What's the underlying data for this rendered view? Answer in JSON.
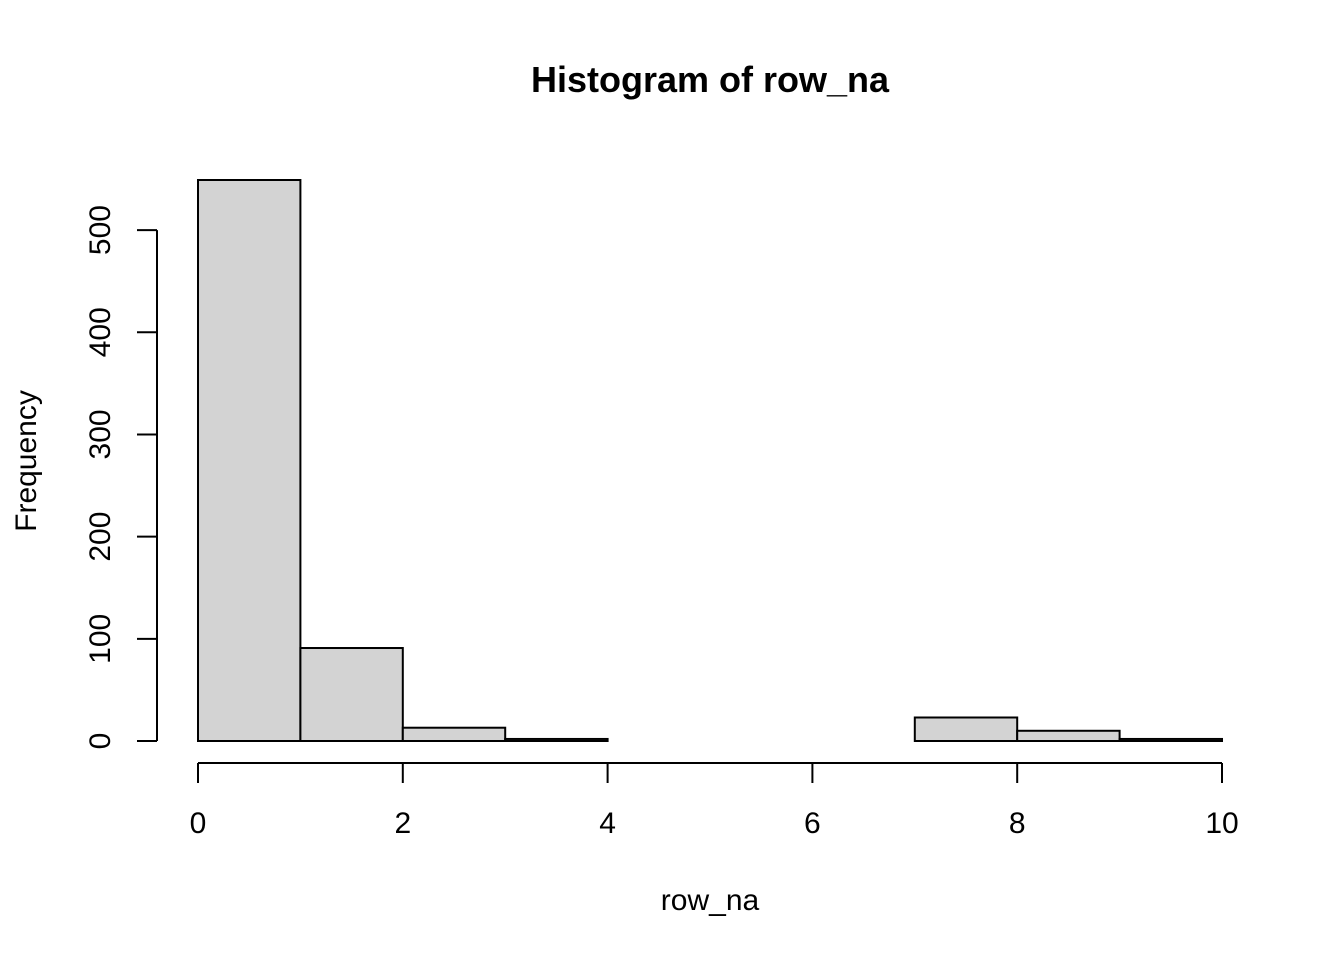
{
  "chart_data": {
    "type": "bar",
    "subtype": "histogram",
    "title": "Histogram of row_na",
    "xlabel": "row_na",
    "ylabel": "Frequency",
    "bins": [
      {
        "x0": 0,
        "x1": 1,
        "count": 549
      },
      {
        "x0": 1,
        "x1": 2,
        "count": 91
      },
      {
        "x0": 2,
        "x1": 3,
        "count": 13
      },
      {
        "x0": 3,
        "x1": 4,
        "count": 2
      },
      {
        "x0": 4,
        "x1": 5,
        "count": 0
      },
      {
        "x0": 5,
        "x1": 6,
        "count": 0
      },
      {
        "x0": 6,
        "x1": 7,
        "count": 0
      },
      {
        "x0": 7,
        "x1": 8,
        "count": 23
      },
      {
        "x0": 8,
        "x1": 9,
        "count": 10
      },
      {
        "x0": 9,
        "x1": 10,
        "count": 2
      }
    ],
    "xlim": [
      0,
      10
    ],
    "ylim": [
      0,
      549
    ],
    "xticks": [
      0,
      2,
      4,
      6,
      8,
      10
    ],
    "yticks": [
      0,
      100,
      200,
      300,
      400,
      500
    ],
    "bar_fill": "#d3d3d3",
    "bar_stroke": "#000000",
    "grid": false,
    "legend": "none"
  }
}
